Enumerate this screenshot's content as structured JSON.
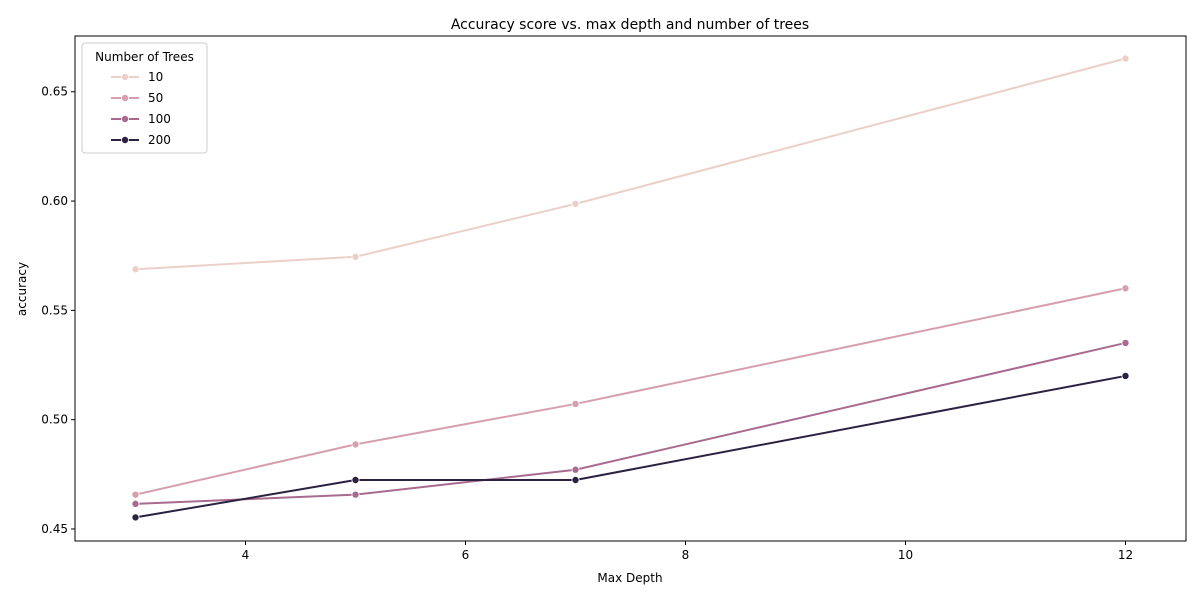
{
  "chart_data": {
    "type": "line",
    "title": "Accuracy score vs. max depth and number of trees",
    "xlabel": "Max Depth",
    "ylabel": "accuracy",
    "x": [
      3,
      5,
      7,
      12
    ],
    "xlim": [
      2.45,
      12.55
    ],
    "ylim": [
      0.4445,
      0.6755
    ],
    "xticks": [
      4,
      6,
      8,
      10,
      12
    ],
    "yticks": [
      0.45,
      0.5,
      0.55,
      0.6,
      0.65
    ],
    "xtick_labels": [
      "4",
      "6",
      "8",
      "10",
      "12"
    ],
    "ytick_labels": [
      "0.45",
      "0.50",
      "0.55",
      "0.60",
      "0.65"
    ],
    "grid": false,
    "legend": {
      "title": "Number of Trees",
      "placement": "top-left"
    },
    "series": [
      {
        "name": "10",
        "color": "#ebd0c9",
        "values": [
          0.5688,
          0.5745,
          0.5987,
          0.6652
        ]
      },
      {
        "name": "50",
        "color": "#d69fae",
        "values": [
          0.4657,
          0.4887,
          0.5072,
          0.5601
        ]
      },
      {
        "name": "100",
        "color": "#a86a8e",
        "values": [
          0.4615,
          0.4657,
          0.4771,
          0.5351
        ]
      },
      {
        "name": "200",
        "color": "#2b2140",
        "values": [
          0.4553,
          0.4724,
          0.4724,
          0.52
        ]
      }
    ]
  }
}
